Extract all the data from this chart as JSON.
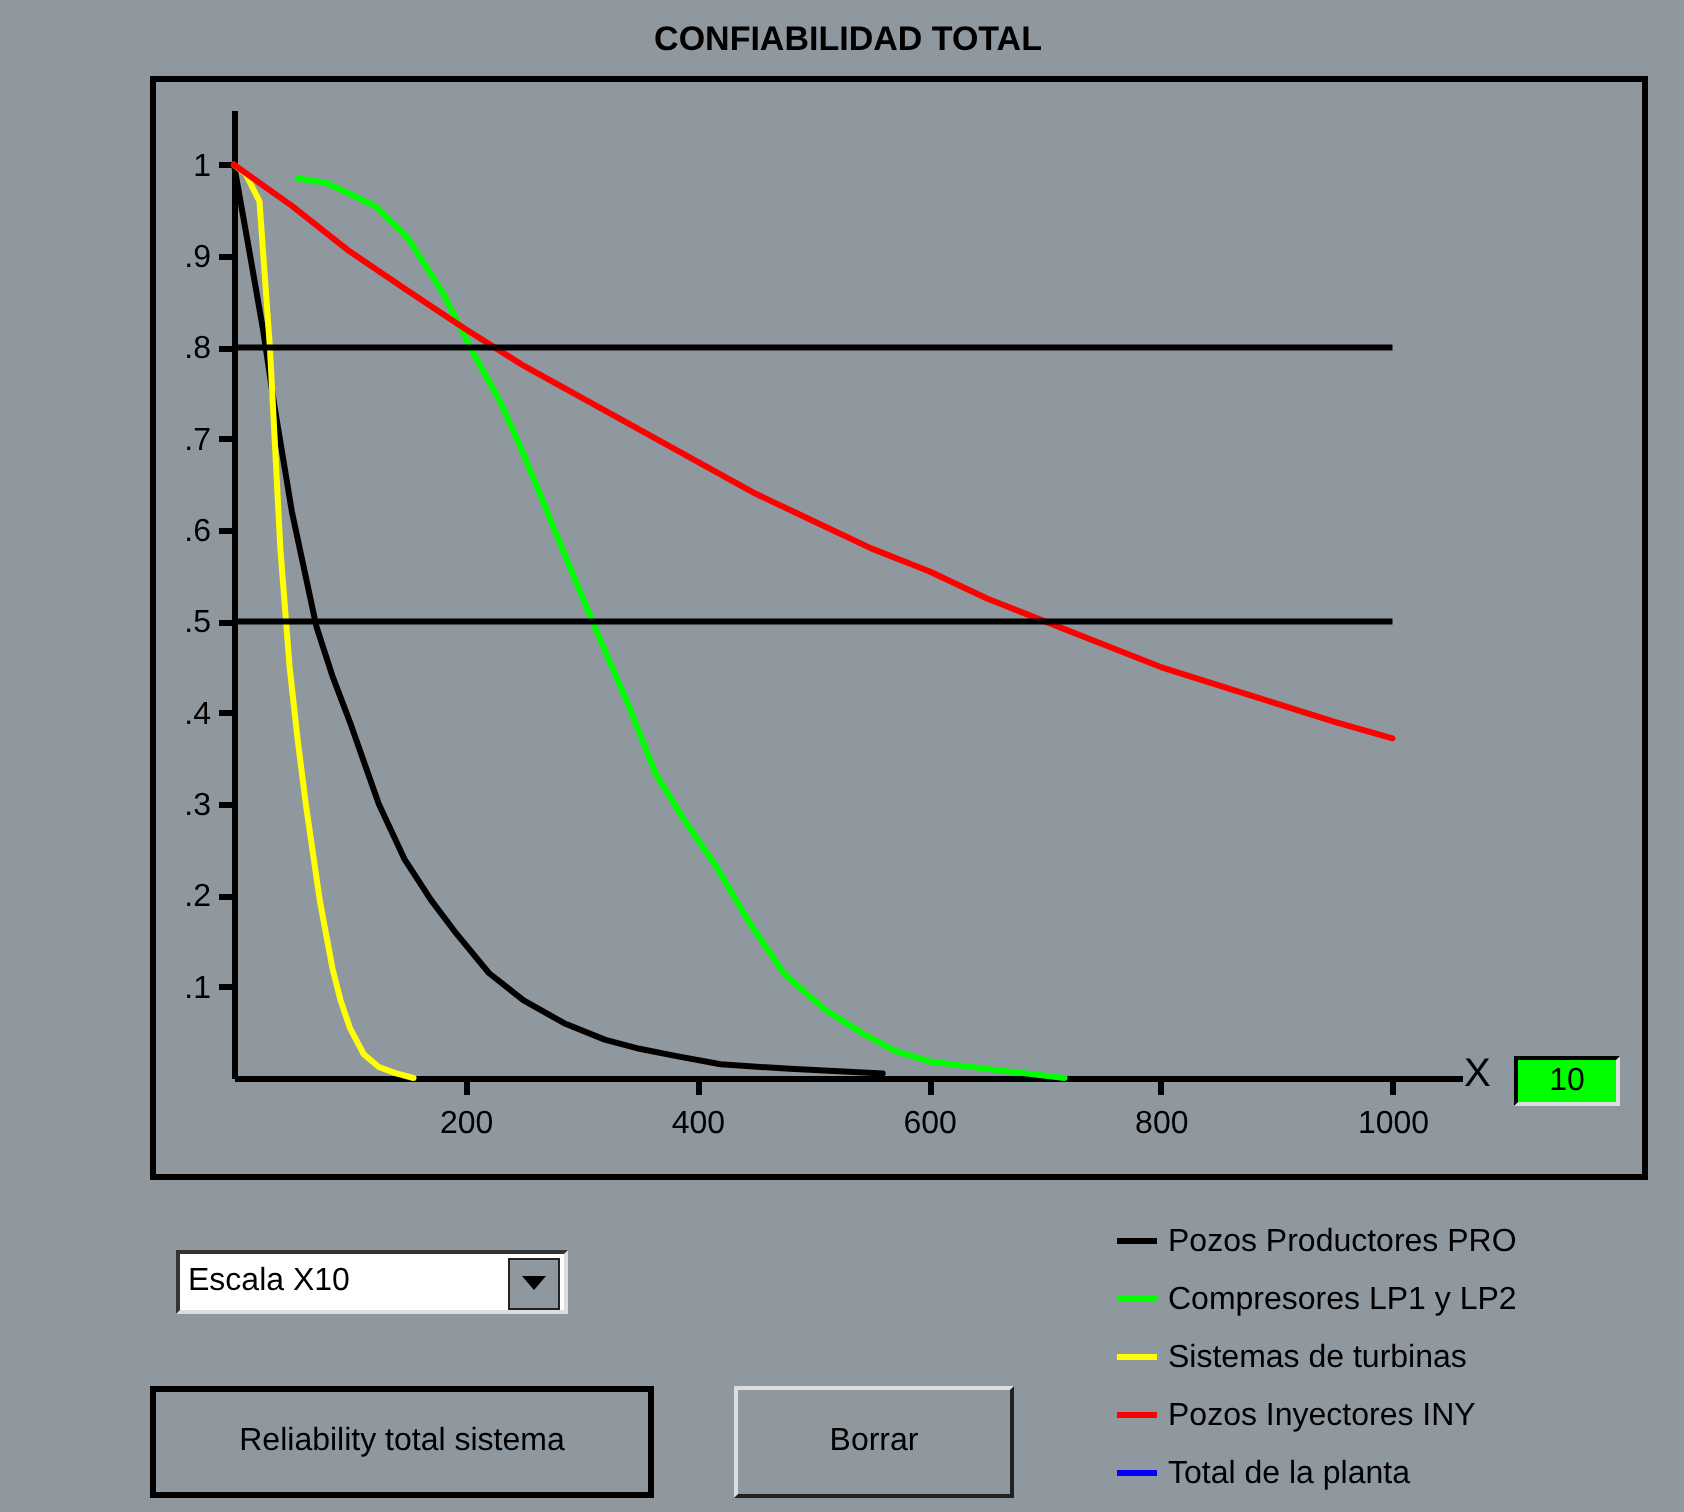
{
  "chart_data": {
    "type": "line",
    "title": "CONFIABILIDAD TOTAL",
    "series": [
      {
        "name": "Pozos Productores PRO",
        "color": "#000000",
        "x": [
          0,
          7,
          14,
          25,
          35,
          50,
          71,
          85,
          100,
          125,
          147,
          170,
          192,
          220,
          250,
          285,
          320,
          350,
          382,
          420,
          480,
          560
        ],
        "values": [
          1.0,
          0.95,
          0.9,
          0.82,
          0.735,
          0.62,
          0.495,
          0.44,
          0.39,
          0.3,
          0.24,
          0.195,
          0.158,
          0.115,
          0.085,
          0.06,
          0.042,
          0.032,
          0.024,
          0.015,
          0.01,
          0.005
        ]
      },
      {
        "name": "Compresores LP1 y LP2",
        "color": "#00ff00",
        "x": [
          55,
          80,
          123,
          150,
          181,
          204,
          230,
          250,
          280,
          311,
          340,
          364,
          390,
          416,
          445,
          475,
          510,
          541,
          570,
          601,
          650,
          717
        ],
        "values": [
          0.985,
          0.98,
          0.954,
          0.92,
          0.858,
          0.8,
          0.74,
          0.683,
          0.59,
          0.495,
          0.41,
          0.333,
          0.28,
          0.232,
          0.17,
          0.114,
          0.075,
          0.05,
          0.03,
          0.018,
          0.01,
          0.0
        ]
      },
      {
        "name": "Sistemas de turbinas",
        "color": "#ffff00",
        "x": [
          0,
          10,
          22,
          31,
          40,
          48,
          55,
          62,
          74,
          85,
          92,
          100,
          112,
          125,
          140,
          155
        ],
        "values": [
          1.0,
          0.99,
          0.96,
          0.8,
          0.58,
          0.45,
          0.37,
          0.3,
          0.195,
          0.12,
          0.085,
          0.055,
          0.026,
          0.012,
          0.005,
          0.0
        ]
      },
      {
        "name": "Pozos Inyectores INY",
        "color": "#ff0000",
        "x": [
          0,
          50,
          100,
          150,
          200,
          250,
          300,
          350,
          400,
          450,
          500,
          550,
          600,
          650,
          700,
          750,
          800,
          850,
          900,
          950,
          1000
        ],
        "values": [
          1.0,
          0.955,
          0.905,
          0.862,
          0.82,
          0.78,
          0.745,
          0.71,
          0.675,
          0.64,
          0.61,
          0.58,
          0.555,
          0.525,
          0.5,
          0.475,
          0.45,
          0.43,
          0.41,
          0.39,
          0.372
        ]
      },
      {
        "name": "Total de la planta",
        "color": "#0000ff"
      }
    ],
    "xlim": [
      0,
      1060
    ],
    "ylim": [
      0,
      1.06
    ],
    "xticks": [
      200,
      400,
      600,
      800,
      1000
    ],
    "yticks": [
      {
        "value": 0.1,
        "label": ".1"
      },
      {
        "value": 0.2,
        "label": ".2"
      },
      {
        "value": 0.3,
        "label": ".3"
      },
      {
        "value": 0.4,
        "label": ".4"
      },
      {
        "value": 0.5,
        "label": ".5"
      },
      {
        "value": 0.6,
        "label": ".6"
      },
      {
        "value": 0.7,
        "label": ".7"
      },
      {
        "value": 0.8,
        "label": ".8"
      },
      {
        "value": 0.9,
        "label": ".9"
      },
      1
    ],
    "ref_lines": [
      {
        "axis": "y",
        "value": 0.8
      },
      {
        "axis": "y",
        "value": 0.5
      }
    ],
    "legend": "bottom right",
    "annotations": [
      "X",
      "10",
      "Escala X10",
      "Reliability total sistema",
      "Borrar"
    ]
  }
}
